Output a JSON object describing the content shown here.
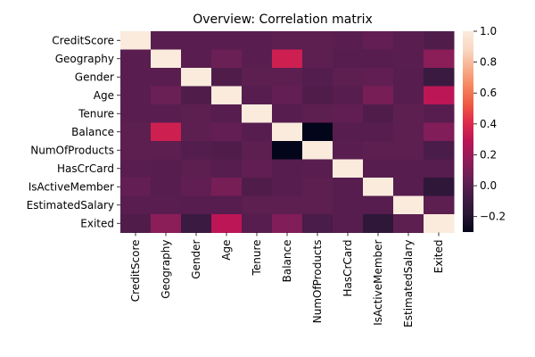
{
  "chart_data": {
    "type": "heatmap",
    "title": "Overview: Correlation matrix",
    "xlabel": "",
    "ylabel": "",
    "labels": [
      "CreditScore",
      "Geography",
      "Gender",
      "Age",
      "Tenure",
      "Balance",
      "NumOfProducts",
      "HasCrCard",
      "IsActiveMember",
      "EstimatedSalary",
      "Exited"
    ],
    "matrix": [
      [
        1.0,
        0.0,
        0.0,
        0.0,
        0.0,
        0.01,
        0.01,
        0.0,
        0.03,
        0.0,
        -0.03
      ],
      [
        0.0,
        1.0,
        0.0,
        0.05,
        0.0,
        0.35,
        0.01,
        -0.01,
        -0.01,
        0.0,
        0.15
      ],
      [
        0.0,
        0.0,
        1.0,
        -0.03,
        0.01,
        0.01,
        -0.02,
        0.01,
        0.02,
        -0.01,
        -0.11
      ],
      [
        0.0,
        0.05,
        -0.03,
        1.0,
        -0.01,
        0.03,
        -0.03,
        -0.01,
        0.09,
        -0.01,
        0.29
      ],
      [
        0.0,
        0.0,
        0.01,
        -0.01,
        1.0,
        -0.01,
        0.01,
        0.02,
        -0.03,
        0.01,
        -0.01
      ],
      [
        0.01,
        0.35,
        0.01,
        0.03,
        -0.01,
        1.0,
        -0.3,
        -0.01,
        -0.01,
        0.01,
        0.12
      ],
      [
        0.01,
        0.01,
        -0.02,
        -0.03,
        0.01,
        -0.3,
        1.0,
        0.0,
        0.01,
        0.01,
        -0.05
      ],
      [
        0.0,
        -0.01,
        0.01,
        -0.01,
        0.02,
        -0.01,
        0.0,
        1.0,
        -0.01,
        -0.01,
        -0.01
      ],
      [
        0.03,
        -0.01,
        0.02,
        0.09,
        -0.03,
        -0.01,
        0.01,
        -0.01,
        1.0,
        -0.01,
        -0.16
      ],
      [
        0.0,
        0.0,
        -0.01,
        -0.01,
        0.01,
        0.01,
        0.01,
        -0.01,
        -0.01,
        1.0,
        0.01
      ],
      [
        -0.03,
        0.15,
        -0.11,
        0.29,
        -0.01,
        0.12,
        -0.05,
        -0.01,
        -0.16,
        0.01,
        1.0
      ]
    ],
    "colorbar": {
      "min": -0.3,
      "max": 1.0,
      "ticks": [
        -0.2,
        0.0,
        0.2,
        0.4,
        0.6,
        0.8,
        1.0
      ],
      "tick_labels": [
        "−0.2",
        "0.0",
        "0.2",
        "0.4",
        "0.6",
        "0.8",
        "1.0"
      ],
      "colormap": "rocket",
      "stops": [
        "#03051a",
        "#2a1636",
        "#451c47",
        "#6b1f56",
        "#931c5a",
        "#bc1656",
        "#de2a4b",
        "#f05a44",
        "#f6865e",
        "#f7b08e",
        "#f9d8c3",
        "#faebdd"
      ]
    }
  }
}
